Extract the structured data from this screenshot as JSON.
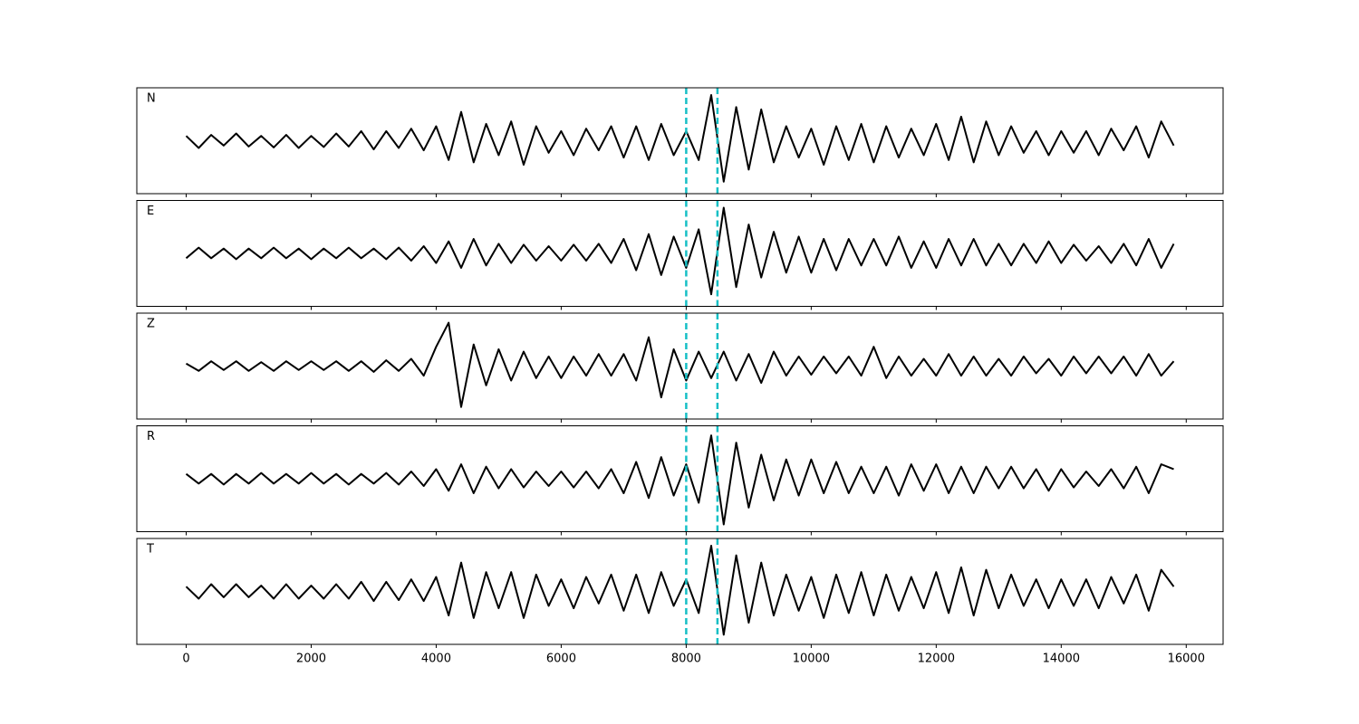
{
  "chart_data": {
    "type": "line",
    "layout": "stacked",
    "x": [
      0,
      200,
      400,
      600,
      800,
      1000,
      1200,
      1400,
      1600,
      1800,
      2000,
      2200,
      2400,
      2600,
      2800,
      3000,
      3200,
      3400,
      3600,
      3800,
      4000,
      4200,
      4400,
      4600,
      4800,
      5000,
      5200,
      5400,
      5600,
      5800,
      6000,
      6200,
      6400,
      6600,
      6800,
      7000,
      7200,
      7400,
      7600,
      7800,
      8000,
      8200,
      8400,
      8600,
      8800,
      9000,
      9200,
      9400,
      9600,
      9800,
      10000,
      10200,
      10400,
      10600,
      10800,
      11000,
      11200,
      11400,
      11600,
      11800,
      12000,
      12200,
      12400,
      12600,
      12800,
      13000,
      13200,
      13400,
      13600,
      13800,
      14000,
      14200,
      14400,
      14600,
      14800,
      15000,
      15200,
      15400,
      15600,
      15800
    ],
    "series": [
      {
        "name": "N",
        "color": "#000000",
        "values": [
          0.1,
          -0.15,
          0.12,
          -0.1,
          0.15,
          -0.12,
          0.1,
          -0.14,
          0.12,
          -0.15,
          0.1,
          -0.13,
          0.15,
          -0.12,
          0.2,
          -0.18,
          0.2,
          -0.15,
          0.25,
          -0.2,
          0.3,
          -0.4,
          0.6,
          -0.45,
          0.35,
          -0.3,
          0.4,
          -0.5,
          0.3,
          -0.25,
          0.2,
          -0.3,
          0.25,
          -0.2,
          0.3,
          -0.35,
          0.3,
          -0.4,
          0.35,
          -0.3,
          0.2,
          -0.4,
          0.95,
          -0.85,
          0.7,
          -0.6,
          0.65,
          -0.45,
          0.3,
          -0.35,
          0.25,
          -0.5,
          0.3,
          -0.4,
          0.35,
          -0.45,
          0.3,
          -0.35,
          0.25,
          -0.3,
          0.35,
          -0.4,
          0.5,
          -0.45,
          0.4,
          -0.3,
          0.3,
          -0.25,
          0.2,
          -0.3,
          0.2,
          -0.25,
          0.2,
          -0.3,
          0.25,
          -0.2,
          0.3,
          -0.35,
          0.4,
          -0.1
        ]
      },
      {
        "name": "E",
        "color": "#000000",
        "values": [
          -0.1,
          0.12,
          -0.1,
          0.1,
          -0.12,
          0.1,
          -0.1,
          0.12,
          -0.1,
          0.1,
          -0.12,
          0.1,
          -0.1,
          0.12,
          -0.1,
          0.1,
          -0.12,
          0.12,
          -0.15,
          0.15,
          -0.2,
          0.25,
          -0.3,
          0.3,
          -0.25,
          0.2,
          -0.2,
          0.18,
          -0.15,
          0.15,
          -0.15,
          0.18,
          -0.15,
          0.2,
          -0.2,
          0.3,
          -0.35,
          0.4,
          -0.45,
          0.35,
          -0.3,
          0.5,
          -0.85,
          0.95,
          -0.7,
          0.6,
          -0.5,
          0.45,
          -0.4,
          0.35,
          -0.4,
          0.3,
          -0.35,
          0.3,
          -0.25,
          0.3,
          -0.25,
          0.35,
          -0.3,
          0.25,
          -0.3,
          0.3,
          -0.25,
          0.3,
          -0.25,
          0.2,
          -0.25,
          0.2,
          -0.2,
          0.25,
          -0.2,
          0.18,
          -0.15,
          0.15,
          -0.2,
          0.2,
          -0.25,
          0.3,
          -0.3,
          0.2
        ]
      },
      {
        "name": "Z",
        "color": "#000000",
        "values": [
          0.05,
          -0.1,
          0.1,
          -0.08,
          0.1,
          -0.1,
          0.08,
          -0.1,
          0.1,
          -0.08,
          0.1,
          -0.08,
          0.1,
          -0.1,
          0.1,
          -0.12,
          0.12,
          -0.1,
          0.15,
          -0.2,
          0.4,
          0.9,
          -0.85,
          0.45,
          -0.4,
          0.35,
          -0.3,
          0.3,
          -0.25,
          0.2,
          -0.25,
          0.2,
          -0.2,
          0.25,
          -0.2,
          0.25,
          -0.3,
          0.6,
          -0.65,
          0.35,
          -0.3,
          0.3,
          -0.25,
          0.3,
          -0.3,
          0.25,
          -0.35,
          0.3,
          -0.2,
          0.2,
          -0.18,
          0.2,
          -0.15,
          0.2,
          -0.2,
          0.4,
          -0.25,
          0.2,
          -0.2,
          0.15,
          -0.2,
          0.25,
          -0.2,
          0.2,
          -0.2,
          0.15,
          -0.2,
          0.2,
          -0.15,
          0.15,
          -0.2,
          0.2,
          -0.15,
          0.2,
          -0.15,
          0.2,
          -0.2,
          0.25,
          -0.2,
          0.1
        ]
      },
      {
        "name": "R",
        "color": "#000000",
        "values": [
          0.1,
          -0.1,
          0.1,
          -0.12,
          0.1,
          -0.1,
          0.12,
          -0.1,
          0.1,
          -0.1,
          0.12,
          -0.1,
          0.1,
          -0.12,
          0.1,
          -0.1,
          0.12,
          -0.12,
          0.15,
          -0.15,
          0.2,
          -0.25,
          0.3,
          -0.3,
          0.25,
          -0.2,
          0.2,
          -0.18,
          0.15,
          -0.15,
          0.15,
          -0.18,
          0.15,
          -0.2,
          0.2,
          -0.3,
          0.35,
          -0.4,
          0.45,
          -0.35,
          0.3,
          -0.5,
          0.9,
          -0.95,
          0.75,
          -0.6,
          0.5,
          -0.45,
          0.4,
          -0.35,
          0.4,
          -0.3,
          0.35,
          -0.3,
          0.25,
          -0.3,
          0.25,
          -0.35,
          0.3,
          -0.25,
          0.3,
          -0.3,
          0.25,
          -0.3,
          0.25,
          -0.2,
          0.25,
          -0.2,
          0.2,
          -0.25,
          0.2,
          -0.18,
          0.15,
          -0.15,
          0.2,
          -0.2,
          0.25,
          -0.3,
          0.3,
          0.2
        ]
      },
      {
        "name": "T",
        "color": "#000000",
        "values": [
          0.1,
          -0.15,
          0.15,
          -0.12,
          0.15,
          -0.12,
          0.12,
          -0.15,
          0.15,
          -0.15,
          0.12,
          -0.15,
          0.15,
          -0.15,
          0.2,
          -0.2,
          0.2,
          -0.18,
          0.25,
          -0.2,
          0.3,
          -0.5,
          0.6,
          -0.55,
          0.4,
          -0.35,
          0.4,
          -0.55,
          0.35,
          -0.3,
          0.25,
          -0.35,
          0.3,
          -0.25,
          0.35,
          -0.4,
          0.35,
          -0.45,
          0.4,
          -0.3,
          0.25,
          -0.45,
          0.95,
          -0.9,
          0.75,
          -0.65,
          0.6,
          -0.5,
          0.35,
          -0.4,
          0.3,
          -0.55,
          0.35,
          -0.45,
          0.4,
          -0.5,
          0.35,
          -0.4,
          0.3,
          -0.35,
          0.4,
          -0.45,
          0.5,
          -0.5,
          0.45,
          -0.35,
          0.35,
          -0.3,
          0.25,
          -0.35,
          0.25,
          -0.3,
          0.25,
          -0.35,
          0.3,
          -0.25,
          0.35,
          -0.4,
          0.45,
          0.1
        ]
      }
    ],
    "xlim": [
      -790,
      16590
    ],
    "ylim": [
      -1.1,
      1.1
    ],
    "xticks": [
      0,
      2000,
      4000,
      6000,
      8000,
      10000,
      12000,
      14000,
      16000
    ],
    "vlines": [
      8000,
      8500
    ],
    "vline_color": "#17bfc5"
  }
}
